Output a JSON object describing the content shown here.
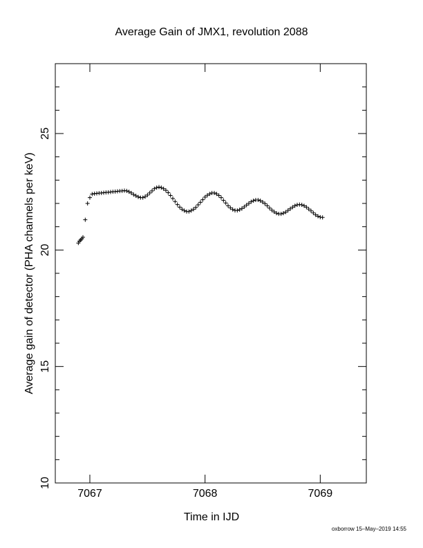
{
  "chart_data": {
    "type": "scatter",
    "title": "Average Gain of JMX1, revolution 2088",
    "x_label": "Time in IJD",
    "y_label": "Average gain of detector (PHA channels per keV)",
    "footer": "oxborrow 15–May–2019 14:55",
    "marker": "+",
    "color": "#000000",
    "xlim": [
      7066.7,
      7069.4
    ],
    "ylim": [
      10,
      28
    ],
    "xticks": [
      7067,
      7068,
      7069
    ],
    "yticks": [
      10,
      15,
      20,
      25
    ],
    "xminor_ticks": [
      6.8,
      7.0,
      7.2,
      7.4,
      7.6,
      7.8,
      8.0,
      8.2,
      8.4,
      8.6,
      8.8,
      9.0,
      9.2
    ],
    "yminor_ticks": [
      11,
      12,
      13,
      14,
      16,
      17,
      18,
      19,
      21,
      22,
      23,
      24,
      26,
      27
    ],
    "series": [
      {
        "name": "gain",
        "color": "#000000",
        "x": [
          7066.9,
          7066.91,
          7066.92,
          7066.93,
          7066.94,
          7066.96,
          7066.98,
          7067.0,
          7067.02,
          7067.04,
          7067.06,
          7067.08,
          7067.1,
          7067.12,
          7067.14,
          7067.16,
          7067.18,
          7067.2,
          7067.22,
          7067.24,
          7067.26,
          7067.28,
          7067.3,
          7067.32,
          7067.34,
          7067.36,
          7067.38,
          7067.4,
          7067.42,
          7067.44,
          7067.46,
          7067.48,
          7067.5,
          7067.52,
          7067.54,
          7067.56,
          7067.58,
          7067.6,
          7067.62,
          7067.64,
          7067.66,
          7067.68,
          7067.7,
          7067.72,
          7067.74,
          7067.76,
          7067.78,
          7067.8,
          7067.82,
          7067.84,
          7067.86,
          7067.88,
          7067.9,
          7067.92,
          7067.94,
          7067.96,
          7067.98,
          7068.0,
          7068.02,
          7068.04,
          7068.06,
          7068.08,
          7068.1,
          7068.12,
          7068.14,
          7068.16,
          7068.18,
          7068.2,
          7068.22,
          7068.24,
          7068.26,
          7068.28,
          7068.3,
          7068.32,
          7068.34,
          7068.36,
          7068.38,
          7068.4,
          7068.42,
          7068.44,
          7068.46,
          7068.48,
          7068.5,
          7068.52,
          7068.54,
          7068.56,
          7068.58,
          7068.6,
          7068.62,
          7068.64,
          7068.66,
          7068.68,
          7068.7,
          7068.72,
          7068.74,
          7068.76,
          7068.78,
          7068.8,
          7068.82,
          7068.84,
          7068.86,
          7068.88,
          7068.9,
          7068.92,
          7068.94,
          7068.96,
          7068.98,
          7069.0,
          7069.02
        ],
        "values": [
          20.3,
          20.38,
          20.43,
          20.48,
          20.55,
          21.3,
          22.0,
          22.25,
          22.4,
          22.42,
          22.43,
          22.44,
          22.45,
          22.46,
          22.47,
          22.48,
          22.49,
          22.5,
          22.51,
          22.52,
          22.53,
          22.54,
          22.55,
          22.54,
          22.5,
          22.45,
          22.38,
          22.33,
          22.28,
          22.25,
          22.25,
          22.29,
          22.36,
          22.45,
          22.54,
          22.63,
          22.68,
          22.7,
          22.68,
          22.63,
          22.56,
          22.46,
          22.34,
          22.21,
          22.08,
          21.95,
          21.84,
          21.75,
          21.69,
          21.65,
          21.65,
          21.69,
          21.75,
          21.83,
          21.94,
          22.05,
          22.16,
          22.27,
          22.35,
          22.41,
          22.45,
          22.45,
          22.41,
          22.34,
          22.25,
          22.13,
          22.02,
          21.9,
          21.81,
          21.74,
          21.7,
          21.7,
          21.73,
          21.78,
          21.85,
          21.93,
          22.0,
          22.07,
          22.12,
          22.15,
          22.15,
          22.12,
          22.06,
          21.99,
          21.9,
          21.8,
          21.71,
          21.64,
          21.58,
          21.55,
          21.55,
          21.58,
          21.63,
          21.7,
          21.77,
          21.84,
          21.9,
          21.94,
          21.95,
          21.94,
          21.9,
          21.84,
          21.76,
          21.68,
          21.59,
          21.51,
          21.45,
          21.41,
          21.4
        ]
      }
    ]
  }
}
